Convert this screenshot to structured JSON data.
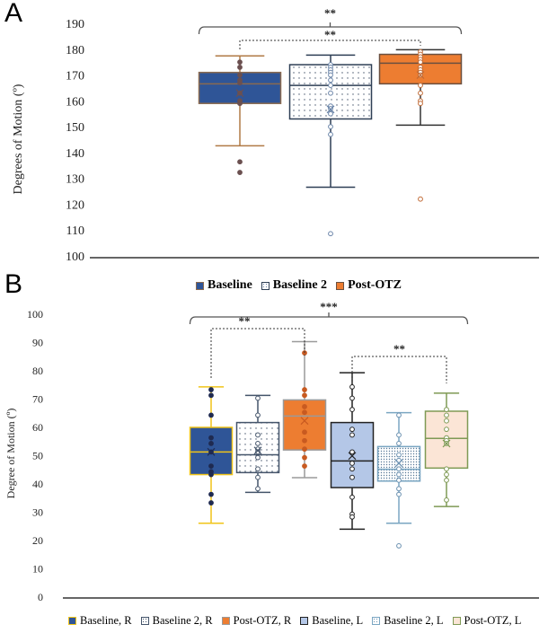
{
  "chart_data": [
    {
      "panel": "A",
      "type": "box",
      "ylabel": "Degrees of Motion (º)",
      "ylim": [
        100,
        190
      ],
      "yticks": [
        "100",
        "110",
        "120",
        "130",
        "140",
        "150",
        "160",
        "170",
        "180",
        "190"
      ],
      "grid": false,
      "legend_position": "bottom",
      "series": [
        {
          "name": "Baseline",
          "fill": "#2f5597",
          "stroke": "#8a6a50",
          "whisker": "#b07a45",
          "point": "#6b5050",
          "filled_points": true,
          "pattern": "none",
          "whisker_low": 142.6,
          "q1": 159,
          "median": 166.6,
          "q3": 171,
          "whisker_high": 177.4,
          "mean": 163,
          "points": [
            175,
            173,
            170,
            168,
            167,
            163,
            160,
            159,
            136.4,
            132.3
          ]
        },
        {
          "name": "Baseline 2",
          "fill": "#ffffff",
          "stroke": "#2e3f55",
          "whisker": "#2e3f55",
          "point": "#6a84a8",
          "filled_points": false,
          "pattern": "dots",
          "whisker_low": 126.6,
          "q1": 153,
          "median": 166,
          "q3": 174,
          "whisker_high": 177.7,
          "mean": 156.7,
          "points": [
            174,
            173,
            172,
            171,
            170,
            168,
            166,
            163,
            158,
            157,
            155,
            150,
            147,
            108.6
          ]
        },
        {
          "name": "Post-OTZ",
          "fill": "#ed7d31",
          "stroke": "#6b5040",
          "whisker": "#333333",
          "point": "#c06a35",
          "filled_points": false,
          "pattern": "none",
          "whisker_low": 150.6,
          "q1": 166.6,
          "median": 174.6,
          "q3": 178,
          "whisker_high": 179.8,
          "mean": 170,
          "points": [
            179,
            178,
            177,
            176,
            175,
            173,
            172,
            171,
            170,
            166,
            163,
            160,
            159,
            122
          ]
        }
      ],
      "significance": [
        {
          "from": 0,
          "to": 2,
          "label": "**",
          "style": "solid"
        },
        {
          "from": 0,
          "to": 2,
          "label": "**",
          "style": "dashed"
        }
      ]
    },
    {
      "panel": "B",
      "type": "box",
      "ylabel": "Degree of Motion (º)",
      "ylim": [
        0,
        100
      ],
      "yticks": [
        "0",
        "10",
        "20",
        "30",
        "40",
        "50",
        "60",
        "70",
        "80",
        "90",
        "100"
      ],
      "grid": false,
      "legend_position": "bottom",
      "series": [
        {
          "name": "Baseline, R",
          "fill": "#2f5597",
          "stroke": "#f0c419",
          "whisker": "#f0c419",
          "point": "#1f2a50",
          "filled_points": true,
          "pattern": "none",
          "whisker_low": 25.8,
          "q1": 43,
          "median": 51,
          "q3": 59.7,
          "whisker_high": 74,
          "mean": 51,
          "points": [
            73,
            71,
            64,
            56,
            54,
            51,
            46,
            44,
            43,
            36,
            33
          ]
        },
        {
          "name": "Baseline 2, R",
          "fill": "#ffffff",
          "stroke": "#44546a",
          "whisker": "#44546a",
          "point": "#44546a",
          "filled_points": false,
          "pattern": "dots",
          "whisker_low": 36.7,
          "q1": 43.7,
          "median": 50,
          "q3": 61.4,
          "whisker_high": 71,
          "mean": 51.5,
          "points": [
            70,
            64,
            57,
            54,
            52,
            51,
            49,
            45,
            42,
            38
          ]
        },
        {
          "name": "Post-OTZ, R",
          "fill": "#ed7d31",
          "stroke": "#9a9a9a",
          "whisker": "#9a9a9a",
          "point": "#c85a20",
          "filled_points": true,
          "pattern": "none",
          "whisker_low": 41.9,
          "q1": 51.7,
          "median": 63.7,
          "q3": 69.4,
          "whisker_high": 90,
          "mean": 62,
          "points": [
            86,
            73,
            71,
            67,
            65,
            58,
            55,
            52,
            49,
            46
          ]
        },
        {
          "name": "Baseline, L",
          "fill": "#b4c7e7",
          "stroke": "#222222",
          "whisker": "#222222",
          "point": "#222222",
          "filled_points": false,
          "pattern": "none",
          "whisker_low": 23.7,
          "q1": 38.4,
          "median": 47.8,
          "q3": 61.4,
          "whisker_high": 79,
          "mean": 49.6,
          "points": [
            74,
            70,
            66,
            59,
            57,
            51,
            47,
            45,
            42,
            35,
            29,
            28
          ]
        },
        {
          "name": "Baseline 2, L",
          "fill": "#ffffff",
          "stroke": "#7aa6c2",
          "whisker": "#7aa6c2",
          "point": "#6a90b0",
          "filled_points": false,
          "pattern": "dense",
          "whisker_low": 25.8,
          "q1": 40.7,
          "median": 44.9,
          "q3": 52.9,
          "whisker_high": 64.9,
          "mean": 47,
          "points": [
            64,
            57,
            54,
            50,
            48,
            45,
            43,
            41,
            38,
            36,
            17.8
          ]
        },
        {
          "name": "Post-OTZ, L",
          "fill": "#fbe5d6",
          "stroke": "#7f9a55",
          "whisker": "#7f9a55",
          "point": "#7f9a55",
          "filled_points": false,
          "pattern": "none",
          "whisker_low": 31.7,
          "q1": 45.3,
          "median": 55.8,
          "q3": 65.4,
          "whisker_high": 71.8,
          "mean": 54,
          "points": [
            66,
            64,
            62,
            59,
            56,
            55,
            54,
            45,
            43,
            41,
            34
          ]
        }
      ],
      "significance": [
        {
          "from": 0,
          "to": 5,
          "label": "***",
          "style": "solid"
        },
        {
          "from": 0,
          "to": 2,
          "label": "**",
          "style": "dashed"
        },
        {
          "from": 3,
          "to": 5,
          "label": "**",
          "style": "dashed"
        }
      ]
    }
  ]
}
